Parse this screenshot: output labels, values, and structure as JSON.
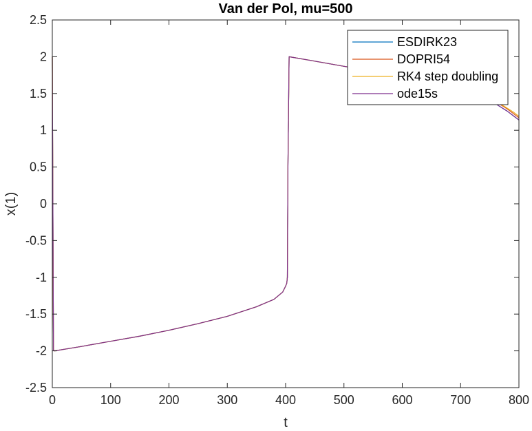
{
  "chart_data": {
    "type": "line",
    "title": "Van der Pol, mu=500",
    "xlabel": "t",
    "ylabel": "x(1)",
    "xlim": [
      0,
      800
    ],
    "ylim": [
      -2.5,
      2.5
    ],
    "xticks": [
      0,
      100,
      200,
      300,
      400,
      500,
      600,
      700,
      800
    ],
    "yticks": [
      -2.5,
      -2,
      -1.5,
      -1,
      -0.5,
      0,
      0.5,
      1,
      1.5,
      2,
      2.5
    ],
    "xtick_labels": [
      "0",
      "100",
      "200",
      "300",
      "400",
      "500",
      "600",
      "700",
      "800"
    ],
    "ytick_labels": [
      "-2.5",
      "-2",
      "-1.5",
      "-1",
      "-0.5",
      "0",
      "0.5",
      "1",
      "1.5",
      "2",
      "2.5"
    ],
    "grid": false,
    "legend_position": "top-right",
    "series": [
      {
        "name": "ESDIRK23",
        "color": "#0072BD",
        "x": [
          0,
          0.5,
          2,
          4,
          50,
          100,
          150,
          200,
          250,
          300,
          350,
          380,
          395,
          400,
          402,
          403,
          404,
          406,
          450,
          500,
          550,
          600,
          650,
          700,
          720,
          740,
          760,
          770,
          780,
          790,
          800
        ],
        "y": [
          2,
          1.0,
          -1.99,
          -2.0,
          -1.94,
          -1.87,
          -1.8,
          -1.72,
          -1.63,
          -1.53,
          -1.4,
          -1.3,
          -1.2,
          -1.12,
          -1.08,
          -1.0,
          0.5,
          2.0,
          1.94,
          1.87,
          1.8,
          1.72,
          1.63,
          1.53,
          1.48,
          1.42,
          1.36,
          1.31,
          1.26,
          1.2,
          1.14
        ]
      },
      {
        "name": "DOPRI54",
        "color": "#D95319",
        "x": [
          0,
          0.5,
          2,
          4,
          50,
          100,
          150,
          200,
          250,
          300,
          350,
          380,
          395,
          400,
          402,
          403,
          404,
          406,
          450,
          500,
          550,
          600,
          650,
          700,
          720,
          740,
          760,
          770,
          780,
          790,
          800
        ],
        "y": [
          2,
          1.0,
          -1.99,
          -2.0,
          -1.94,
          -1.87,
          -1.8,
          -1.72,
          -1.63,
          -1.53,
          -1.4,
          -1.3,
          -1.2,
          -1.12,
          -1.08,
          -1.0,
          0.5,
          2.0,
          1.94,
          1.87,
          1.8,
          1.72,
          1.63,
          1.54,
          1.49,
          1.44,
          1.38,
          1.34,
          1.29,
          1.23,
          1.17
        ]
      },
      {
        "name": "RK4 step doubling",
        "color": "#EDB120",
        "x": [
          0,
          0.5,
          2,
          4,
          50,
          100,
          150,
          200,
          250,
          300,
          350,
          380,
          395,
          400,
          402,
          403,
          404,
          406,
          450,
          500,
          550,
          600,
          650,
          700,
          720,
          740,
          760,
          770,
          780,
          790,
          800
        ],
        "y": [
          2,
          1.0,
          -1.99,
          -2.0,
          -1.94,
          -1.87,
          -1.8,
          -1.72,
          -1.63,
          -1.53,
          -1.4,
          -1.3,
          -1.2,
          -1.12,
          -1.08,
          -1.0,
          0.5,
          2.0,
          1.94,
          1.87,
          1.8,
          1.72,
          1.63,
          1.54,
          1.5,
          1.45,
          1.39,
          1.35,
          1.3,
          1.25,
          1.19
        ]
      },
      {
        "name": "ode15s",
        "color": "#7E2F8E",
        "x": [
          0,
          0.5,
          2,
          4,
          50,
          100,
          150,
          200,
          250,
          300,
          350,
          380,
          395,
          400,
          402,
          403,
          404,
          406,
          450,
          500,
          550,
          600,
          650,
          700,
          720,
          740,
          760,
          770,
          780,
          790,
          800
        ],
        "y": [
          2,
          1.0,
          -1.99,
          -2.0,
          -1.94,
          -1.87,
          -1.8,
          -1.72,
          -1.63,
          -1.53,
          -1.4,
          -1.3,
          -1.2,
          -1.12,
          -1.08,
          -1.0,
          0.5,
          2.0,
          1.94,
          1.87,
          1.8,
          1.72,
          1.63,
          1.53,
          1.48,
          1.42,
          1.36,
          1.31,
          1.26,
          1.2,
          1.14
        ]
      }
    ]
  }
}
